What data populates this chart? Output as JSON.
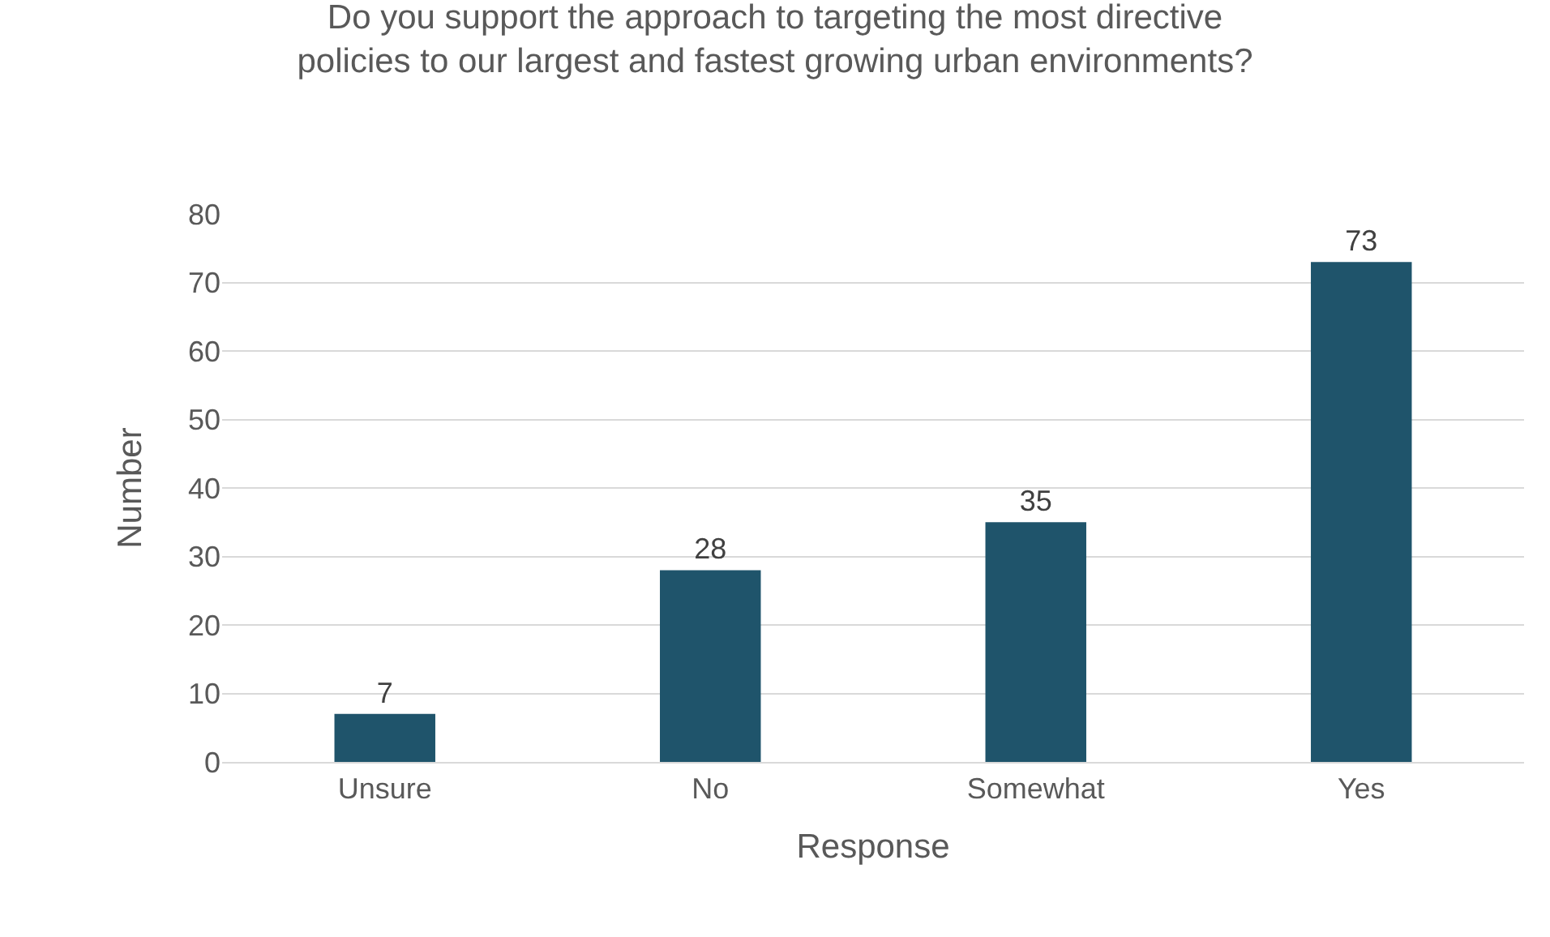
{
  "chart_data": {
    "type": "bar",
    "title": "Do you support the approach to targeting the most directive policies to our largest and fastest growing urban environments?",
    "xlabel": "Response",
    "ylabel": "Number",
    "categories": [
      "Unsure",
      "No",
      "Somewhat",
      "Yes"
    ],
    "values": [
      7,
      28,
      35,
      73
    ],
    "color": "#1f546b",
    "ylim": [
      0,
      80
    ],
    "yticks": [
      0,
      10,
      20,
      30,
      40,
      50,
      60,
      70,
      80
    ],
    "grid": "y",
    "data_labels": true,
    "legend": false
  }
}
